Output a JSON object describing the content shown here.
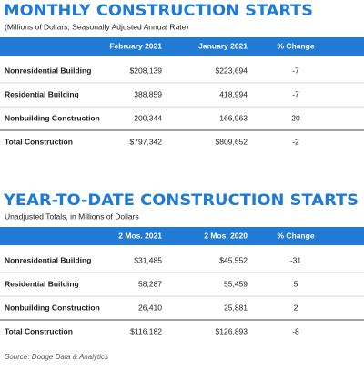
{
  "sections": [
    {
      "title": "MONTHLY CONSTRUCTION STARTS",
      "subtitle": "(Millions of Dollars, Seasonally Adjusted Annual Rate)",
      "table": {
        "header": [
          "February 2021",
          "January 2021",
          "% Change"
        ],
        "rows": [
          [
            "Nonresidential Building",
            "$208,139",
            "$223,694",
            "-7"
          ],
          [
            "Residential Building",
            "388,859",
            "418,994",
            "-7"
          ],
          [
            "Nonbuilding Construction",
            "200,344",
            "166,963",
            "20"
          ],
          [
            "Total Construction",
            "$797,342",
            "$809,652",
            "-2"
          ]
        ]
      }
    },
    {
      "title": "YEAR-TO-DATE CONSTRUCTION STARTS",
      "subtitle": "Unadjusted Totals, in Millions of Dollars",
      "table": {
        "header": [
          "2 Mos. 2021",
          "2 Mos. 2020",
          "% Change"
        ],
        "rows": [
          [
            "Nonresidential Building",
            "$31,485",
            "$45,552",
            "-31"
          ],
          [
            "Residential Building",
            "58,287",
            "55,459",
            "5"
          ],
          [
            "Nonbuilding Construction",
            "26,410",
            "25,881",
            "2"
          ],
          [
            "Total Construction",
            "$116,182",
            "$126,893",
            "-8"
          ]
        ]
      }
    }
  ],
  "source": "Source: Dodge Data & Analytics"
}
